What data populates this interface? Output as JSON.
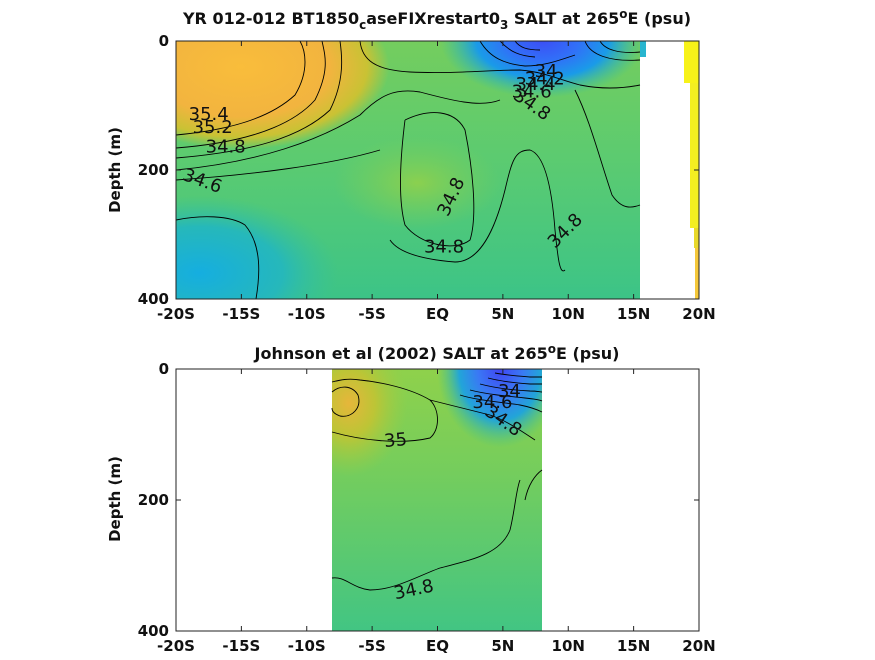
{
  "chart_data": [
    {
      "type": "heatmap",
      "subtype": "filled-contour depth section",
      "title": {
        "prefix": "YR 012-012 BT1850",
        "sub1": "c",
        "mid": "aseFIXrestart0",
        "sub2": "3",
        "rest": " SALT at 265",
        "sup": "o",
        "suffix": "E (psu)"
      },
      "ylabel": "Depth (m)",
      "x_tick_labels": [
        "-20S",
        "-15S",
        "-10S",
        "-5S",
        "EQ",
        "5N",
        "10N",
        "15N",
        "20N"
      ],
      "x_ticks": [
        -20,
        -15,
        -10,
        -5,
        0,
        5,
        10,
        15,
        20
      ],
      "y_tick_labels": [
        "0",
        "200",
        "400"
      ],
      "y_ticks": [
        0,
        200,
        400
      ],
      "xlim": [
        -20,
        20
      ],
      "ylim": [
        0,
        400
      ],
      "y_reversed": true,
      "data_extent_lat": [
        -20,
        15.5
      ],
      "contour_labels": [
        {
          "text": "35.4",
          "lat": -17.5,
          "depth": 115,
          "angle": 0
        },
        {
          "text": "35.2",
          "lat": -17.2,
          "depth": 135,
          "angle": 0
        },
        {
          "text": "34.8",
          "lat": -16.2,
          "depth": 165,
          "angle": 0
        },
        {
          "text": "34.6",
          "lat": -18.0,
          "depth": 218,
          "angle": 20
        },
        {
          "text": "34.8",
          "lat": 1.1,
          "depth": 242,
          "angle": -65
        },
        {
          "text": "34.8",
          "lat": 0.5,
          "depth": 320,
          "angle": 0
        },
        {
          "text": "34.8",
          "lat": 9.8,
          "depth": 295,
          "angle": -45
        },
        {
          "text": "34",
          "lat": 8.3,
          "depth": 48,
          "angle": 0
        },
        {
          "text": "34.2",
          "lat": 8.2,
          "depth": 60,
          "angle": 0
        },
        {
          "text": "34.4",
          "lat": 7.5,
          "depth": 68,
          "angle": 0
        },
        {
          "text": "34.6",
          "lat": 7.2,
          "depth": 80,
          "angle": 0
        },
        {
          "text": "34.8",
          "lat": 7.2,
          "depth": 100,
          "angle": 35
        }
      ]
    },
    {
      "type": "heatmap",
      "subtype": "filled-contour depth section",
      "title": {
        "prefix": "Johnson et al (2002) SALT at 265",
        "sup": "o",
        "suffix": "E (psu)"
      },
      "ylabel": "Depth (m)",
      "x_tick_labels": [
        "-20S",
        "-15S",
        "-10S",
        "-5S",
        "EQ",
        "5N",
        "10N",
        "15N",
        "20N"
      ],
      "x_ticks": [
        -20,
        -15,
        -10,
        -5,
        0,
        5,
        10,
        15,
        20
      ],
      "y_tick_labels": [
        "0",
        "200",
        "400"
      ],
      "y_ticks": [
        0,
        200,
        400
      ],
      "xlim": [
        -20,
        20
      ],
      "ylim": [
        0,
        400
      ],
      "y_reversed": true,
      "data_extent_lat": [
        -8,
        8
      ],
      "contour_labels": [
        {
          "text": "35",
          "lat": -3.2,
          "depth": 110,
          "angle": -5
        },
        {
          "text": "34.8",
          "lat": -1.8,
          "depth": 338,
          "angle": -12
        },
        {
          "text": "34",
          "lat": 5.5,
          "depth": 35,
          "angle": 0
        },
        {
          "text": "34.6",
          "lat": 4.2,
          "depth": 52,
          "angle": 0
        },
        {
          "text": "34.8",
          "lat": 5.0,
          "depth": 80,
          "angle": 35
        }
      ]
    }
  ]
}
